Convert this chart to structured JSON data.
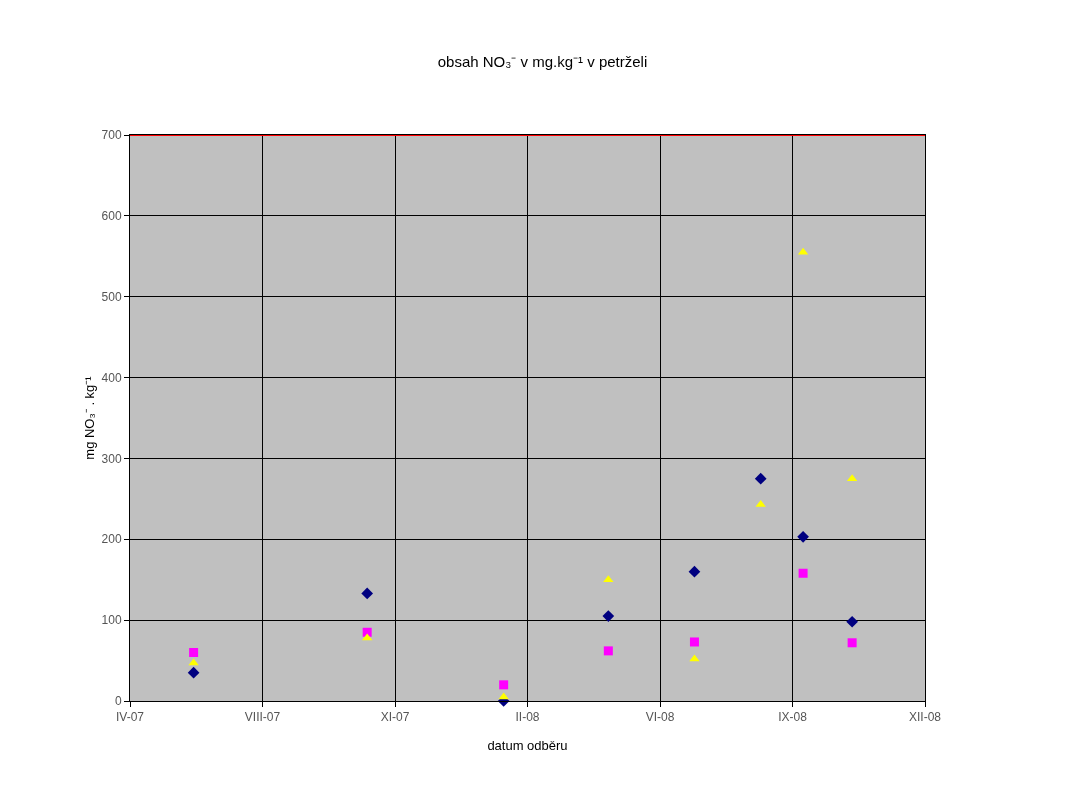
{
  "chart_data": {
    "type": "scatter",
    "title": "obsah NO₃⁻ v mg.kg⁻¹ v petrželi",
    "xlabel": "datum odběru",
    "ylabel": "mg NO₃⁻ . kg⁻¹",
    "x": [
      "2007-06-15",
      "2007-10-24",
      "2008-02-04",
      "2008-04-23",
      "2008-06-27",
      "2008-08-16",
      "2008-09-17",
      "2008-10-24"
    ],
    "series": [
      {
        "color": "#000080",
        "marker": "diamond",
        "values": [
          35,
          133,
          0,
          105,
          160,
          275,
          203,
          98
        ]
      },
      {
        "color": "#ff00ff",
        "marker": "square",
        "values": [
          60,
          85,
          20,
          62,
          73,
          null,
          158,
          72
        ]
      },
      {
        "color": "#ffff00",
        "marker": "triangle",
        "values": [
          47,
          78,
          5,
          150,
          52,
          243,
          555,
          275
        ]
      }
    ],
    "xlim": [
      "2007-04-28",
      "2008-12-18"
    ],
    "xticks": [
      {
        "value": "2007-04-28",
        "label": "IV-07"
      },
      {
        "value": "2007-08-06",
        "label": "VIII-07"
      },
      {
        "value": "2007-11-14",
        "label": "XI-07"
      },
      {
        "value": "2008-02-22",
        "label": "II-08"
      },
      {
        "value": "2008-06-01",
        "label": "VI-08"
      },
      {
        "value": "2008-09-09",
        "label": "IX-08"
      },
      {
        "value": "2008-12-18",
        "label": "XII-08"
      }
    ],
    "ylim": [
      0,
      700
    ],
    "yticks": [
      0,
      100,
      200,
      300,
      400,
      500,
      600,
      700
    ],
    "ref_lines": [
      {
        "axis": "y",
        "value": 700,
        "color": "#ff0000"
      }
    ],
    "grid": true
  }
}
